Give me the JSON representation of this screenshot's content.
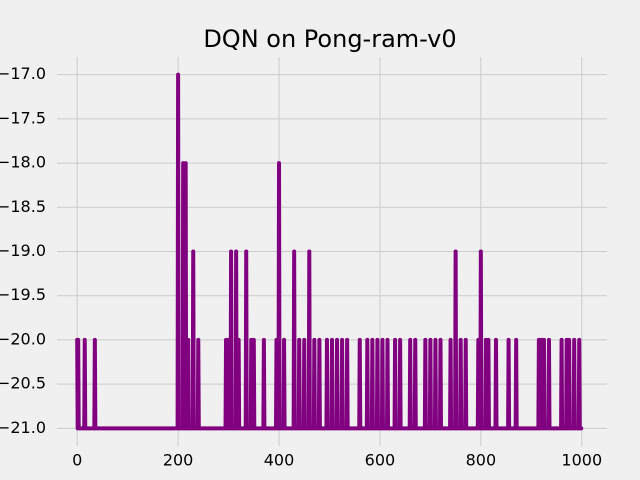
{
  "chart_data": {
    "type": "line",
    "title": "DQN on Pong-ram-v0",
    "color": "#800080",
    "grid": true,
    "x": [
      0,
      1,
      2,
      3,
      14,
      15,
      16,
      34,
      35,
      36,
      199,
      200,
      201,
      209,
      210,
      211,
      214,
      215,
      216,
      219,
      220,
      221,
      229,
      230,
      231,
      239,
      240,
      241,
      294,
      295,
      296,
      299,
      300,
      301,
      304,
      305,
      306,
      314,
      315,
      316,
      319,
      320,
      321,
      334,
      335,
      336,
      344,
      345,
      346,
      349,
      350,
      351,
      369,
      370,
      371,
      394,
      395,
      396,
      399,
      400,
      401,
      409,
      410,
      411,
      429,
      430,
      431,
      439,
      440,
      441,
      449,
      450,
      451,
      459,
      460,
      461,
      469,
      470,
      471,
      479,
      480,
      481,
      494,
      495,
      496,
      504,
      505,
      506,
      514,
      515,
      516,
      524,
      525,
      526,
      534,
      535,
      536,
      559,
      560,
      561,
      574,
      575,
      576,
      584,
      585,
      586,
      594,
      595,
      596,
      604,
      605,
      606,
      614,
      615,
      616,
      629,
      630,
      631,
      639,
      640,
      641,
      659,
      660,
      661,
      669,
      670,
      671,
      689,
      690,
      691,
      699,
      700,
      701,
      709,
      710,
      711,
      719,
      720,
      721,
      739,
      740,
      741,
      749,
      750,
      751,
      759,
      760,
      761,
      769,
      770,
      771,
      794,
      795,
      796,
      799,
      800,
      801,
      809,
      810,
      811,
      814,
      815,
      816,
      829,
      830,
      831,
      854,
      855,
      856,
      869,
      870,
      871,
      914,
      915,
      916,
      919,
      920,
      921,
      924,
      925,
      926,
      934,
      935,
      936,
      959,
      960,
      961,
      969,
      970,
      971,
      974,
      975,
      976,
      984,
      985,
      986,
      994,
      995,
      996,
      999
    ],
    "values": [
      -20,
      -21,
      -20,
      -21,
      -21,
      -20,
      -21,
      -21,
      -20,
      -21,
      -21,
      -17,
      -21,
      -21,
      -18,
      -21,
      -21,
      -18,
      -21,
      -21,
      -20,
      -21,
      -21,
      -19,
      -21,
      -21,
      -20,
      -21,
      -21,
      -20,
      -21,
      -21,
      -20,
      -21,
      -21,
      -19,
      -21,
      -21,
      -19,
      -21,
      -21,
      -20,
      -21,
      -21,
      -19,
      -21,
      -21,
      -20,
      -21,
      -21,
      -20,
      -21,
      -21,
      -20,
      -21,
      -21,
      -20,
      -21,
      -21,
      -18,
      -21,
      -21,
      -20,
      -21,
      -21,
      -19,
      -21,
      -21,
      -20,
      -21,
      -21,
      -20,
      -21,
      -21,
      -19,
      -21,
      -21,
      -20,
      -21,
      -21,
      -20,
      -21,
      -21,
      -20,
      -21,
      -21,
      -20,
      -21,
      -21,
      -20,
      -21,
      -21,
      -20,
      -21,
      -21,
      -20,
      -21,
      -21,
      -20,
      -21,
      -21,
      -20,
      -21,
      -21,
      -20,
      -21,
      -21,
      -20,
      -21,
      -21,
      -20,
      -21,
      -21,
      -20,
      -21,
      -21,
      -20,
      -21,
      -21,
      -20,
      -21,
      -21,
      -20,
      -21,
      -21,
      -20,
      -21,
      -21,
      -20,
      -21,
      -21,
      -20,
      -21,
      -21,
      -20,
      -21,
      -21,
      -20,
      -21,
      -21,
      -20,
      -21,
      -21,
      -19,
      -21,
      -21,
      -20,
      -21,
      -21,
      -20,
      -21,
      -21,
      -20,
      -21,
      -21,
      -19,
      -21,
      -21,
      -20,
      -21,
      -21,
      -20,
      -21,
      -21,
      -20,
      -21,
      -21,
      -20,
      -21,
      -21,
      -20,
      -21,
      -21,
      -20,
      -21,
      -21,
      -20,
      -21,
      -21,
      -20,
      -21,
      -21,
      -20,
      -21,
      -21,
      -20,
      -21,
      -21,
      -20,
      -21,
      -21,
      -20,
      -21,
      -21,
      -20,
      -21,
      -21,
      -20,
      -21,
      -21
    ],
    "xlim": [
      -40,
      1050
    ],
    "xticks": [
      0,
      200,
      400,
      600,
      800,
      1000
    ],
    "ylim": [
      -21.2,
      -16.8
    ],
    "yticks": [
      {
        "value": -21,
        "label": "−21.0"
      },
      {
        "value": -20.5,
        "label": "−20.5"
      },
      {
        "value": -20,
        "label": "−20.0"
      },
      {
        "value": -19.5,
        "label": "−19.5"
      },
      {
        "value": -19,
        "label": "−19.0"
      },
      {
        "value": -18.5,
        "label": "−18.5"
      },
      {
        "value": -18,
        "label": "−18.0"
      },
      {
        "value": -17.5,
        "label": "−17.5"
      },
      {
        "value": -17,
        "label": "−17.0"
      }
    ]
  }
}
